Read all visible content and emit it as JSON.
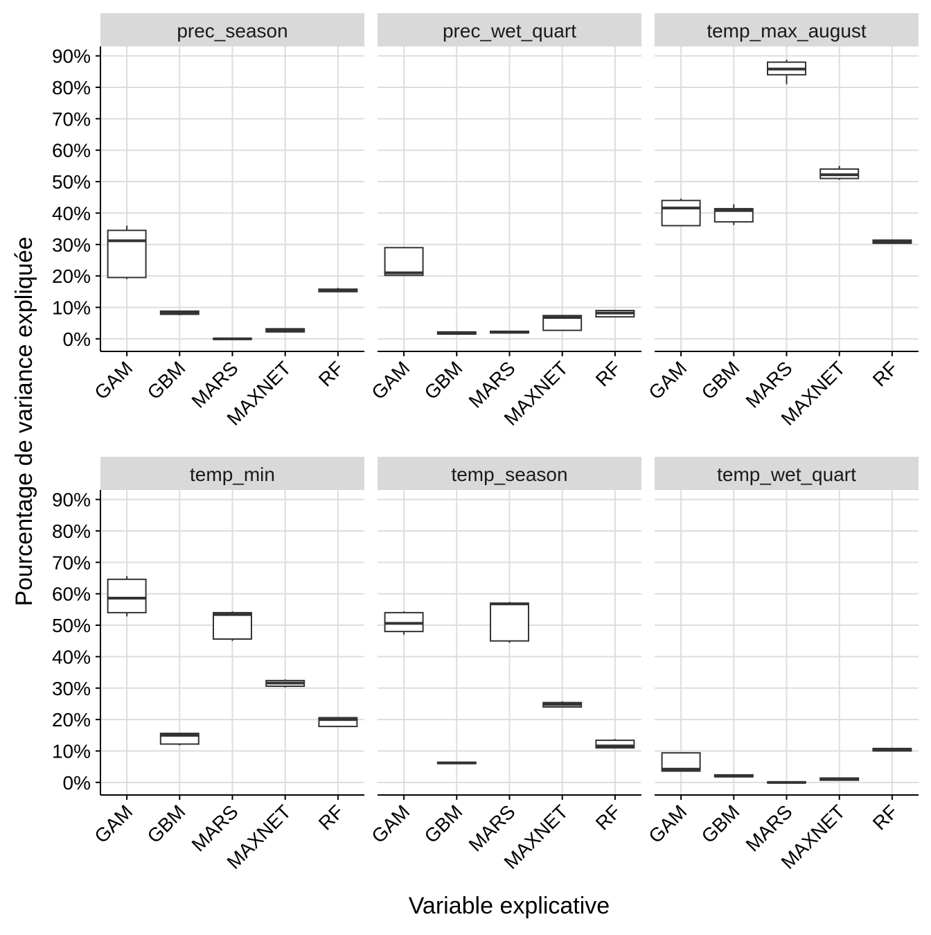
{
  "chart_data": {
    "type": "boxplot",
    "layout": "facet_wrap 2 rows x 3 columns",
    "xlabel": "Variable explicative",
    "ylabel": "Pourcentage de variance expliquée",
    "categories": [
      "GAM",
      "GBM",
      "MARS",
      "MAXNET",
      "RF"
    ],
    "y_ticks": [
      "0%",
      "10%",
      "20%",
      "30%",
      "40%",
      "50%",
      "60%",
      "70%",
      "80%",
      "90%"
    ],
    "y_tick_values": [
      0,
      10,
      20,
      30,
      40,
      50,
      60,
      70,
      80,
      90
    ],
    "ylim": [
      -4,
      93
    ],
    "grid": true,
    "colors": {
      "strip_bg": "#d9d9d9",
      "grid": "#dddddd",
      "box_stroke": "#333333",
      "axis": "#000000"
    },
    "stats_order": [
      "min",
      "q1",
      "median",
      "q3",
      "max"
    ],
    "panels": [
      {
        "title": "prec_season",
        "boxes": [
          [
            19,
            19.5,
            31.2,
            34.5,
            36
          ],
          [
            7.5,
            7.8,
            8.3,
            8.8,
            9.0
          ],
          [
            -0.2,
            -0.1,
            0.0,
            0.1,
            0.2
          ],
          [
            2.0,
            2.2,
            2.8,
            3.2,
            3.4
          ],
          [
            14.8,
            15.0,
            15.4,
            15.8,
            16.2
          ]
        ]
      },
      {
        "title": "prec_wet_quart",
        "boxes": [
          [
            20,
            20.2,
            21.0,
            29.0,
            29.2
          ],
          [
            1.3,
            1.5,
            1.8,
            2.2,
            2.4
          ],
          [
            1.7,
            1.9,
            2.1,
            2.4,
            2.5
          ],
          [
            2.6,
            2.7,
            6.8,
            7.4,
            7.6
          ],
          [
            6.8,
            7.0,
            8.2,
            9.0,
            9.2
          ]
        ]
      },
      {
        "title": "temp_max_august",
        "boxes": [
          [
            35.8,
            36.0,
            41.6,
            44.0,
            44.6
          ],
          [
            36.2,
            37.2,
            40.8,
            41.4,
            42.8
          ],
          [
            81.0,
            84.0,
            85.8,
            88.0,
            88.8
          ],
          [
            50.6,
            51.0,
            52.2,
            54.0,
            55.0
          ],
          [
            30.2,
            30.4,
            31.0,
            31.4,
            31.6
          ]
        ]
      },
      {
        "title": "temp_min",
        "boxes": [
          [
            52.8,
            54.0,
            58.6,
            64.6,
            65.6
          ],
          [
            11.8,
            12.2,
            15.0,
            15.6,
            15.8
          ],
          [
            45.0,
            45.6,
            53.4,
            54.0,
            54.4
          ],
          [
            30.2,
            30.6,
            31.6,
            32.4,
            32.8
          ],
          [
            17.6,
            17.8,
            20.0,
            20.6,
            20.8
          ]
        ]
      },
      {
        "title": "temp_season",
        "boxes": [
          [
            47.0,
            48.0,
            50.6,
            54.0,
            54.4
          ],
          [
            5.8,
            6.0,
            6.2,
            6.4,
            6.6
          ],
          [
            44.4,
            45.0,
            56.8,
            57.0,
            57.4
          ],
          [
            23.8,
            24.0,
            24.8,
            25.4,
            25.8
          ],
          [
            10.8,
            11.0,
            11.6,
            13.4,
            13.8
          ]
        ]
      },
      {
        "title": "temp_wet_quart",
        "boxes": [
          [
            3.4,
            3.6,
            4.2,
            9.4,
            9.6
          ],
          [
            1.6,
            1.8,
            2.0,
            2.4,
            2.6
          ],
          [
            -0.2,
            -0.1,
            0.0,
            0.1,
            0.2
          ],
          [
            0.6,
            0.7,
            1.0,
            1.4,
            1.6
          ],
          [
            9.8,
            10.0,
            10.4,
            10.8,
            11.0
          ]
        ]
      }
    ]
  }
}
